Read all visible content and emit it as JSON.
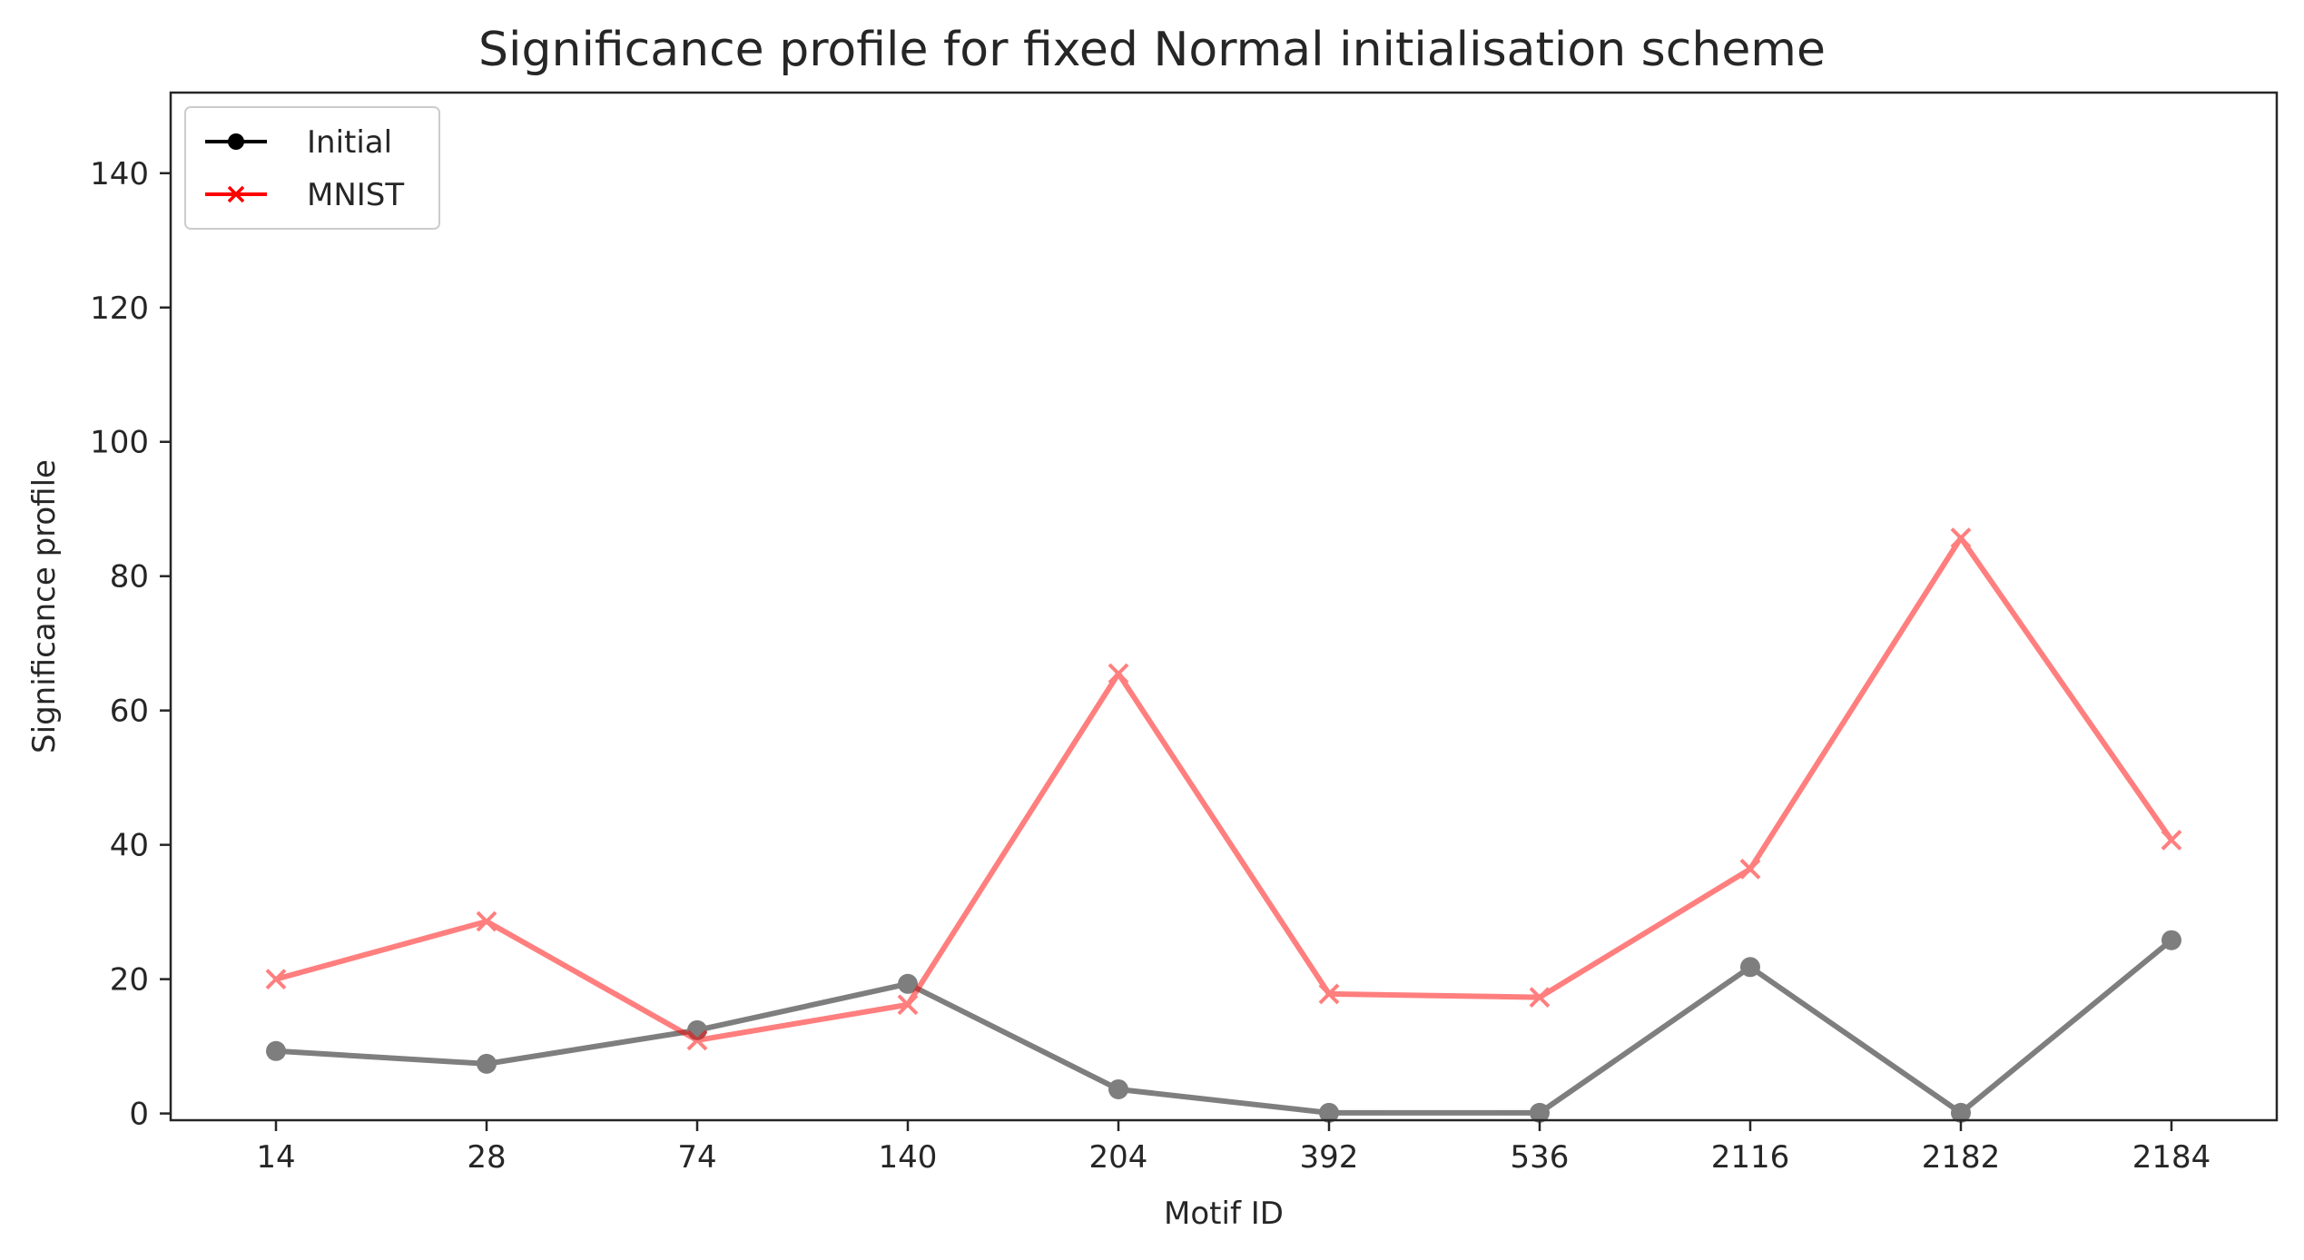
{
  "chart_data": {
    "type": "line",
    "title": "Significance profile for fixed Normal initialisation scheme",
    "xlabel": "Motif ID",
    "ylabel": "Significance profile",
    "categories": [
      "14",
      "28",
      "74",
      "140",
      "204",
      "392",
      "536",
      "2116",
      "2182",
      "2184"
    ],
    "yticks": [
      "0",
      "20",
      "40",
      "60",
      "80",
      "100",
      "120",
      "140"
    ],
    "ylim": [
      -1,
      152
    ],
    "grid": false,
    "legend_position": "top-left",
    "series": [
      {
        "name": "Initial",
        "marker": "circle",
        "color": "#000000",
        "values": [
          9.3,
          7.4,
          12.4,
          19.3,
          3.6,
          0.1,
          0.1,
          21.8,
          0.1,
          25.8
        ]
      },
      {
        "name": "MNIST",
        "marker": "x",
        "color": "#ff0000",
        "values": [
          20.0,
          28.6,
          10.9,
          16.2,
          65.5,
          17.8,
          17.3,
          36.4,
          85.7,
          40.7
        ]
      }
    ]
  }
}
